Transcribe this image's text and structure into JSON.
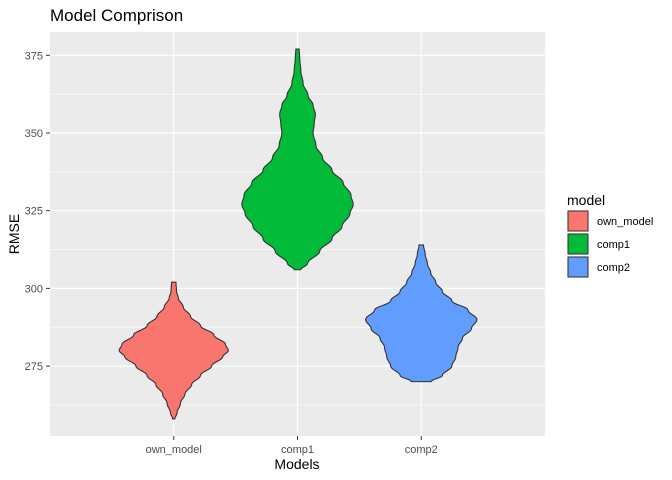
{
  "chart_data": {
    "type": "violin",
    "title": "Model Comprison",
    "xlabel": "Models",
    "ylabel": "RMSE",
    "ylim": [
      252.5,
      382.5
    ],
    "yticks": [
      275,
      300,
      325,
      350,
      375
    ],
    "grid": true,
    "legend": {
      "title": "model",
      "placement": "right",
      "entries": [
        "own_model",
        "comp1",
        "comp2"
      ]
    },
    "categories": [
      "own_model",
      "comp1",
      "comp2"
    ],
    "series": [
      {
        "name": "own_model",
        "color": "#F8766D",
        "profile": [
          [
            258,
            0.02
          ],
          [
            260,
            0.06
          ],
          [
            263,
            0.12
          ],
          [
            266,
            0.2
          ],
          [
            269,
            0.32
          ],
          [
            272,
            0.48
          ],
          [
            275,
            0.68
          ],
          [
            278,
            0.88
          ],
          [
            280,
            0.98
          ],
          [
            282,
            0.93
          ],
          [
            285,
            0.72
          ],
          [
            288,
            0.48
          ],
          [
            291,
            0.3
          ],
          [
            294,
            0.17
          ],
          [
            297,
            0.08
          ],
          [
            299,
            0.05
          ],
          [
            302,
            0.04
          ]
        ]
      },
      {
        "name": "comp1",
        "color": "#00BA38",
        "profile": [
          [
            306,
            0.06
          ],
          [
            308,
            0.18
          ],
          [
            312,
            0.4
          ],
          [
            316,
            0.62
          ],
          [
            320,
            0.8
          ],
          [
            324,
            0.94
          ],
          [
            327,
            1.0
          ],
          [
            330,
            0.96
          ],
          [
            334,
            0.82
          ],
          [
            338,
            0.62
          ],
          [
            342,
            0.45
          ],
          [
            346,
            0.33
          ],
          [
            350,
            0.28
          ],
          [
            353,
            0.3
          ],
          [
            356,
            0.32
          ],
          [
            359,
            0.28
          ],
          [
            362,
            0.19
          ],
          [
            366,
            0.1
          ],
          [
            370,
            0.06
          ],
          [
            374,
            0.04
          ],
          [
            377,
            0.03
          ]
        ]
      },
      {
        "name": "comp2",
        "color": "#619CFF",
        "profile": [
          [
            270,
            0.18
          ],
          [
            272,
            0.38
          ],
          [
            275,
            0.55
          ],
          [
            278,
            0.62
          ],
          [
            281,
            0.66
          ],
          [
            284,
            0.74
          ],
          [
            287,
            0.9
          ],
          [
            290,
            1.0
          ],
          [
            293,
            0.84
          ],
          [
            296,
            0.55
          ],
          [
            299,
            0.38
          ],
          [
            302,
            0.26
          ],
          [
            305,
            0.17
          ],
          [
            308,
            0.11
          ],
          [
            311,
            0.07
          ],
          [
            314,
            0.04
          ]
        ]
      }
    ]
  }
}
